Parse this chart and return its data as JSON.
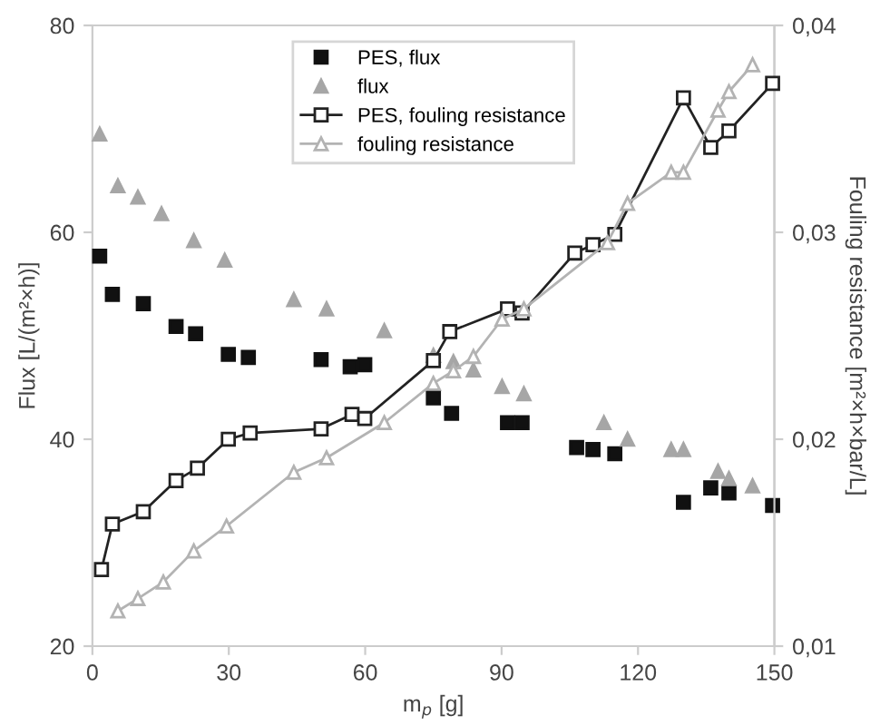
{
  "chart_data": {
    "type": "scatter",
    "xlabel": "m$_{p}$ [g]",
    "ylabel": "Flux [L/(m²×h)]",
    "y2label": "Fouling resistance [m²×h×bar/L]",
    "xlim": [
      0,
      150
    ],
    "xticks": [
      0,
      30,
      60,
      90,
      120,
      150
    ],
    "ylim": [
      20,
      80
    ],
    "yticks": [
      20,
      40,
      60,
      80
    ],
    "y2lim": [
      0.01,
      0.04
    ],
    "y2ticks": [
      {
        "value": 0.01,
        "label": "0,01"
      },
      {
        "value": 0.02,
        "label": "0,02"
      },
      {
        "value": 0.03,
        "label": "0,03"
      },
      {
        "value": 0.04,
        "label": "0,04"
      }
    ],
    "grid": false,
    "legend": "top",
    "series": [
      {
        "name": "PES, flux",
        "marker": "square",
        "color": "#111111",
        "x": [
          1.6,
          4.4,
          11.2,
          18.4,
          22.7,
          29.9,
          34.3,
          50.3,
          56.7,
          59.9,
          75.0,
          79.0,
          91.3,
          94.5,
          106.5,
          110.1,
          114.9,
          130.0,
          136.0,
          140.0,
          149.6
        ],
        "values": [
          57.7,
          54.0,
          53.1,
          50.9,
          50.2,
          48.2,
          47.9,
          47.7,
          47.0,
          47.2,
          44.0,
          42.5,
          41.6,
          41.6,
          39.2,
          39.0,
          38.6,
          33.9,
          35.3,
          34.8,
          33.6
        ]
      },
      {
        "name": "flux",
        "marker": "triangle",
        "color": "#a6a6a6",
        "x": [
          1.6,
          5.6,
          10.0,
          15.2,
          22.3,
          29.1,
          44.3,
          51.5,
          64.2,
          75.0,
          79.4,
          83.8,
          90.1,
          94.9,
          112.5,
          117.7,
          127.3,
          130.0,
          137.6,
          140.0,
          145.2
        ],
        "values": [
          69.5,
          64.5,
          63.4,
          61.8,
          59.2,
          57.3,
          53.5,
          52.6,
          50.5,
          48.1,
          47.5,
          46.7,
          45.1,
          44.4,
          41.6,
          40.0,
          39.0,
          39.0,
          36.9,
          36.2,
          35.5
        ]
      },
      {
        "name": "PES, fouling resistance",
        "type": "line",
        "axis": "y2",
        "marker": "square",
        "line_style": "solid",
        "color": "#222222",
        "x": [
          2.0,
          4.4,
          11.2,
          18.4,
          23.1,
          29.9,
          34.7,
          50.3,
          57.1,
          59.9,
          75.0,
          78.6,
          91.3,
          94.5,
          106.1,
          110.1,
          114.9,
          130.0,
          136.0,
          140.0,
          149.6
        ],
        "values": [
          0.0137,
          0.0159,
          0.0165,
          0.018,
          0.0186,
          0.02,
          0.0203,
          0.0205,
          0.0212,
          0.021,
          0.0238,
          0.0252,
          0.0263,
          0.0261,
          0.029,
          0.0294,
          0.0299,
          0.0365,
          0.0341,
          0.0349,
          0.0372
        ]
      },
      {
        "name": "fouling resistance",
        "type": "line",
        "axis": "y2",
        "marker": "triangle",
        "line_style": "solid",
        "color": "#b3b3b3",
        "x": [
          5.6,
          10.0,
          15.6,
          22.3,
          29.5,
          44.3,
          51.5,
          64.2,
          75.0,
          79.4,
          83.8,
          90.1,
          94.9,
          113.3,
          117.7,
          127.3,
          130.0,
          137.6,
          140.0,
          145.2
        ],
        "values": [
          0.0117,
          0.0123,
          0.0131,
          0.0146,
          0.0158,
          0.0184,
          0.0191,
          0.0208,
          0.0227,
          0.0233,
          0.024,
          0.0258,
          0.0263,
          0.0295,
          0.0314,
          0.0329,
          0.0329,
          0.0359,
          0.0368,
          0.0381
        ]
      }
    ]
  }
}
